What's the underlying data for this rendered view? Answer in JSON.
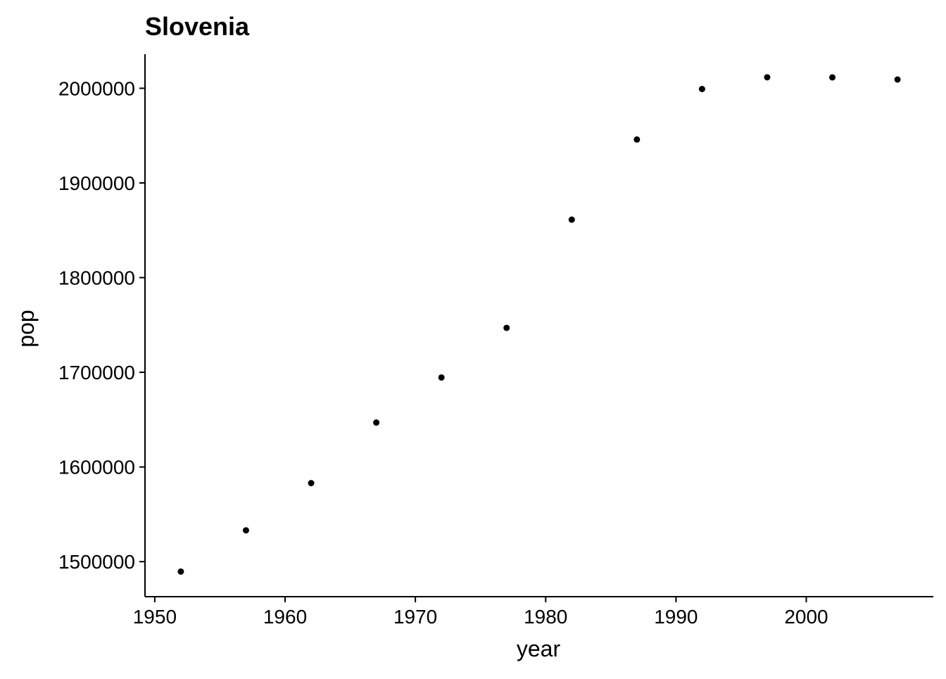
{
  "chart_data": {
    "type": "scatter",
    "title": "Slovenia",
    "xlabel": "year",
    "ylabel": "pop",
    "xlim": [
      1949.25,
      2009.75
    ],
    "ylim": [
      1463000,
      2036000
    ],
    "xticks": [
      1950,
      1960,
      1970,
      1980,
      1990,
      2000
    ],
    "yticks": [
      1500000,
      1600000,
      1700000,
      1800000,
      1900000,
      2000000
    ],
    "grid": false,
    "legend": "none",
    "point_color": "#000000",
    "points": [
      {
        "x": 1952,
        "y": 1489518
      },
      {
        "x": 1957,
        "y": 1533070
      },
      {
        "x": 1962,
        "y": 1582962
      },
      {
        "x": 1967,
        "y": 1646912
      },
      {
        "x": 1972,
        "y": 1694510
      },
      {
        "x": 1977,
        "y": 1746919
      },
      {
        "x": 1982,
        "y": 1861252
      },
      {
        "x": 1987,
        "y": 1945870
      },
      {
        "x": 1992,
        "y": 1999210
      },
      {
        "x": 1997,
        "y": 2011612
      },
      {
        "x": 2002,
        "y": 2011497
      },
      {
        "x": 2007,
        "y": 2009245
      }
    ]
  }
}
